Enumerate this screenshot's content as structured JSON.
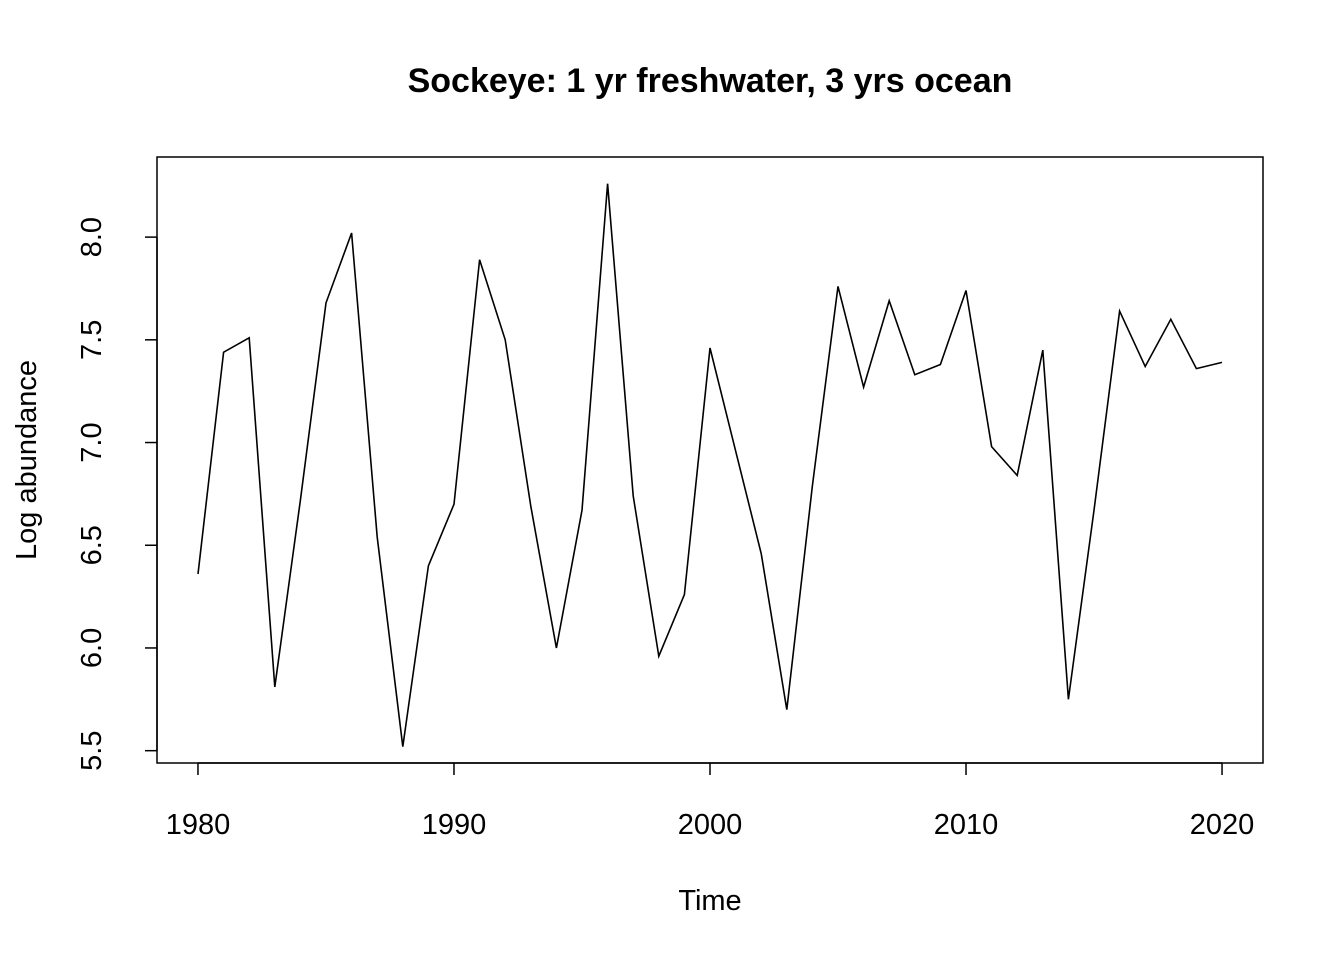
{
  "chart_data": {
    "type": "line",
    "title": "Sockeye: 1 yr freshwater, 3 yrs ocean",
    "xlabel": "Time",
    "ylabel": "Log abundance",
    "xlim": [
      1978.4,
      2021.6
    ],
    "ylim": [
      5.44,
      8.39
    ],
    "x_ticks": [
      1980,
      1990,
      2000,
      2010,
      2020
    ],
    "x_tick_labels": [
      "1980",
      "1990",
      "2000",
      "2010",
      "2020"
    ],
    "y_ticks": [
      5.5,
      6.0,
      6.5,
      7.0,
      7.5,
      8.0
    ],
    "y_tick_labels": [
      "5.5",
      "6.0",
      "6.5",
      "7.0",
      "7.5",
      "8.0"
    ],
    "grid": false,
    "legend": "none",
    "series": [
      {
        "x": [
          1980,
          1981,
          1982,
          1983,
          1984,
          1985,
          1986,
          1987,
          1988,
          1989,
          1990,
          1991,
          1992,
          1993,
          1994,
          1995,
          1996,
          1997,
          1998,
          1999,
          2000,
          2001,
          2002,
          2003,
          2004,
          2005,
          2006,
          2007,
          2008,
          2009,
          2010,
          2011,
          2012,
          2013,
          2014,
          2015,
          2016,
          2017,
          2018,
          2019,
          2020
        ],
        "values": [
          6.36,
          7.44,
          7.51,
          5.81,
          6.72,
          7.68,
          8.02,
          6.54,
          5.52,
          6.4,
          6.7,
          7.89,
          7.5,
          6.69,
          6.0,
          6.67,
          8.26,
          6.74,
          5.96,
          6.26,
          7.46,
          6.96,
          6.46,
          5.7,
          6.79,
          7.76,
          7.27,
          7.69,
          7.33,
          7.38,
          7.74,
          6.98,
          6.84,
          7.45,
          5.75,
          6.67,
          7.64,
          7.37,
          7.6,
          7.36,
          7.39
        ]
      }
    ]
  }
}
